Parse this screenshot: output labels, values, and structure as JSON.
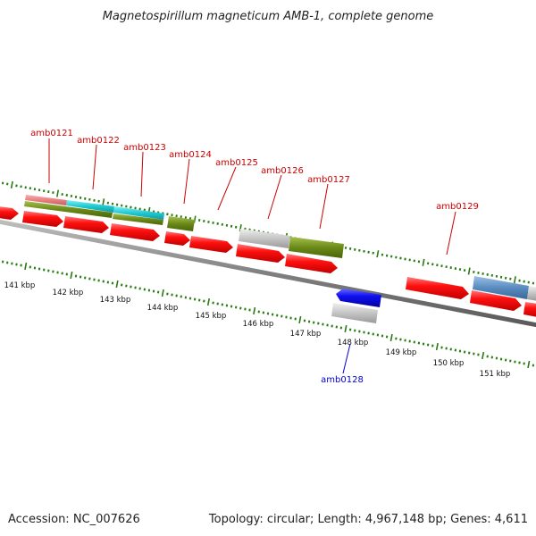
{
  "title": "Magnetospirillum magneticum AMB-1, complete genome",
  "footer": {
    "accession": "Accession: NC_007626",
    "summary": "Topology: circular; Length: 4,967,148 bp; Genes: 4,611"
  },
  "colors": {
    "forward_label": "#cc0000",
    "reverse_label": "#0000cc",
    "backbone": "#808080",
    "tick": "#2a7a12",
    "cds_forward": "#ff0000",
    "cds_reverse": "#0000ee",
    "rna_pink": "#e88080",
    "rna_cyan": "#20c8d0",
    "cog_olive": "#6a8a18",
    "cog_grey": "#c4c4c4",
    "cog_steelblue": "#5a8cc0"
  },
  "axis_labels": [
    {
      "kbp": 141,
      "text": "141 kbp"
    },
    {
      "kbp": 142,
      "text": "142 kbp"
    },
    {
      "kbp": 143,
      "text": "143 kbp"
    },
    {
      "kbp": 144,
      "text": "144 kbp"
    },
    {
      "kbp": 145,
      "text": "145 kbp"
    },
    {
      "kbp": 146,
      "text": "146 kbp"
    },
    {
      "kbp": 147,
      "text": "147 kbp"
    },
    {
      "kbp": 148,
      "text": "148 kbp"
    },
    {
      "kbp": 149,
      "text": "149 kbp"
    },
    {
      "kbp": 150,
      "text": "150 kbp"
    },
    {
      "kbp": 151,
      "text": "151 kbp"
    }
  ],
  "gene_labels": [
    {
      "name": "amb0121",
      "strand": "forward"
    },
    {
      "name": "amb0122",
      "strand": "forward"
    },
    {
      "name": "amb0123",
      "strand": "forward"
    },
    {
      "name": "amb0124",
      "strand": "forward"
    },
    {
      "name": "amb0125",
      "strand": "forward"
    },
    {
      "name": "amb0126",
      "strand": "forward"
    },
    {
      "name": "amb0127",
      "strand": "forward"
    },
    {
      "name": "amb0129",
      "strand": "forward"
    },
    {
      "name": "amb0128",
      "strand": "reverse"
    }
  ]
}
